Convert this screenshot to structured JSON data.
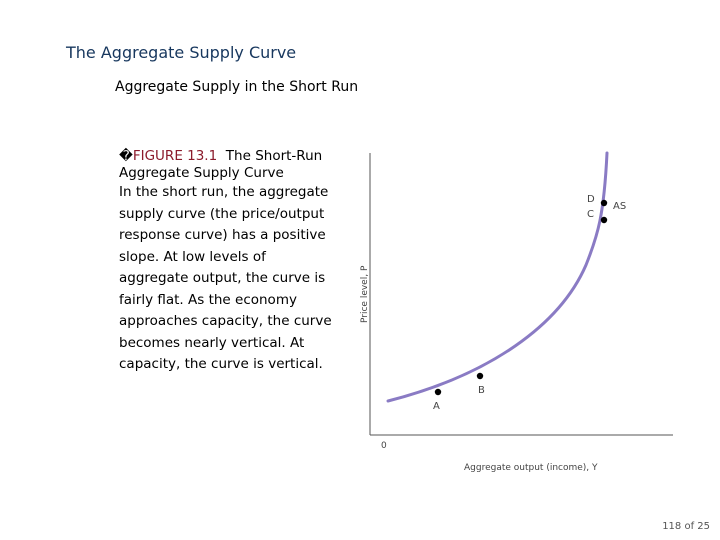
{
  "slide": {
    "title": "The Aggregate Supply Curve",
    "subtitle": "Aggregate Supply in the Short Run",
    "page_number": "118 of 25"
  },
  "figure": {
    "marker": "�",
    "label": "FIGURE 13.1",
    "title": "The Short-Run Aggregate Supply Curve",
    "text": "In the short run, the aggregate supply curve (the price/output response curve) has a positive slope. At low levels of aggregate output, the curve is fairly flat. As the economy approaches capacity, the curve becomes nearly vertical. At capacity, the curve is vertical."
  },
  "chart_data": {
    "type": "line",
    "xlabel": "Aggregate output (income), Y",
    "ylabel": "Price level, P",
    "origin_label": "0",
    "curve_label": "AS",
    "series_color": "#8a7bc4",
    "points": [
      {
        "label": "A"
      },
      {
        "label": "B"
      },
      {
        "label": "C"
      },
      {
        "label": "D"
      }
    ]
  }
}
